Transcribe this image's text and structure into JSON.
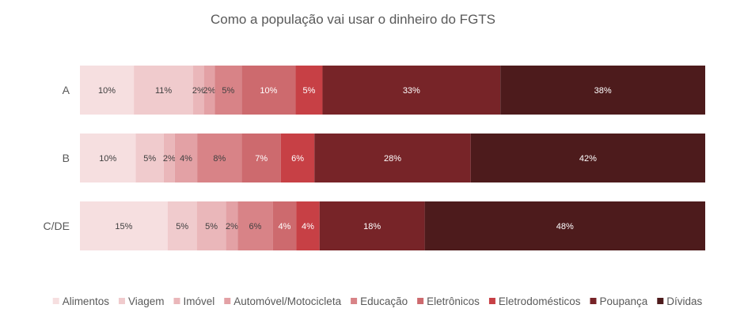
{
  "chart_data": {
    "type": "bar",
    "orientation": "horizontal",
    "stacked": "percent",
    "title": "Como a população vai usar o dinheiro do FGTS",
    "xlabel": "",
    "ylabel": "",
    "categories": [
      "A",
      "B",
      "C/DE"
    ],
    "series": [
      {
        "name": "Alimentos",
        "color": "#f6dfe0",
        "values": [
          10,
          10,
          15
        ],
        "labels": [
          "10%",
          "10%",
          "15%"
        ]
      },
      {
        "name": "Viagem",
        "color": "#f0cbcd",
        "values": [
          11,
          5,
          5
        ],
        "labels": [
          "11%",
          "5%",
          "5%"
        ]
      },
      {
        "name": "Imóvel",
        "color": "#eab7ba",
        "values": [
          2,
          2,
          5
        ],
        "labels": [
          "2%",
          "2%",
          "5%"
        ]
      },
      {
        "name": "Automóvel/Motocicleta",
        "color": "#e3a1a5",
        "values": [
          2,
          4,
          2
        ],
        "labels": [
          "2%",
          "4%",
          "2%"
        ]
      },
      {
        "name": "Educação",
        "color": "#d88387",
        "values": [
          5,
          8,
          6
        ],
        "labels": [
          "5%",
          "8%",
          "6%"
        ]
      },
      {
        "name": "Eletrônicos",
        "color": "#cd6a6e",
        "values": [
          10,
          7,
          4
        ],
        "labels": [
          "10%",
          "7%",
          "4%"
        ]
      },
      {
        "name": "Eletrodomésticos",
        "color": "#c74045",
        "values": [
          5,
          6,
          4
        ],
        "labels": [
          "5%",
          "6%",
          "4%"
        ]
      },
      {
        "name": "Poupança",
        "color": "#772428",
        "values": [
          33,
          28,
          18
        ],
        "labels": [
          "33%",
          "28%",
          "18%"
        ]
      },
      {
        "name": "Dívidas",
        "color": "#4d1b1c",
        "values": [
          38,
          42,
          48
        ],
        "labels": [
          "38%",
          "42%",
          "48%"
        ]
      }
    ],
    "legend_position": "bottom",
    "grid": false
  }
}
